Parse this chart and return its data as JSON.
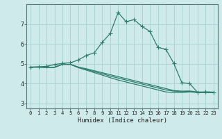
{
  "xlabel": "Humidex (Indice chaleur)",
  "background_color": "#ceeaea",
  "grid_color": "#aad4d4",
  "line_color": "#2e7d6e",
  "xlim": [
    -0.5,
    23.5
  ],
  "ylim": [
    2.75,
    8.0
  ],
  "xticks": [
    0,
    1,
    2,
    3,
    4,
    5,
    6,
    7,
    8,
    9,
    10,
    11,
    12,
    13,
    14,
    15,
    16,
    17,
    18,
    19,
    20,
    21,
    22,
    23
  ],
  "yticks": [
    3,
    4,
    5,
    6,
    7
  ],
  "curve1_x": [
    0,
    1,
    2,
    3,
    4,
    5,
    6,
    7,
    8,
    9,
    10,
    11,
    12,
    13,
    14,
    15,
    16,
    17,
    18,
    19,
    20,
    21,
    22,
    23
  ],
  "curve1_y": [
    4.83,
    4.85,
    4.87,
    4.96,
    5.02,
    5.05,
    5.19,
    5.42,
    5.55,
    6.08,
    6.52,
    7.58,
    7.12,
    7.22,
    6.88,
    6.63,
    5.82,
    5.73,
    5.02,
    4.05,
    4.0,
    3.55,
    3.58,
    3.57
  ],
  "curve2_x": [
    0,
    1,
    2,
    3,
    4,
    5,
    6,
    7,
    8,
    9,
    10,
    11,
    12,
    13,
    14,
    15,
    16,
    17,
    18,
    19,
    20,
    21,
    22,
    23
  ],
  "curve2_y": [
    4.83,
    4.83,
    4.82,
    4.82,
    4.97,
    4.97,
    4.83,
    4.75,
    4.65,
    4.55,
    4.45,
    4.35,
    4.25,
    4.15,
    4.05,
    3.95,
    3.85,
    3.75,
    3.65,
    3.62,
    3.63,
    3.58,
    3.58,
    3.57
  ],
  "curve3_x": [
    0,
    1,
    2,
    3,
    4,
    5,
    6,
    7,
    8,
    9,
    10,
    11,
    12,
    13,
    14,
    15,
    16,
    17,
    18,
    19,
    20,
    21,
    22,
    23
  ],
  "curve3_y": [
    4.83,
    4.83,
    4.82,
    4.82,
    4.97,
    4.97,
    4.83,
    4.71,
    4.6,
    4.5,
    4.38,
    4.28,
    4.18,
    4.08,
    3.98,
    3.88,
    3.78,
    3.68,
    3.62,
    3.6,
    3.6,
    3.56,
    3.56,
    3.55
  ],
  "curve4_x": [
    0,
    1,
    2,
    3,
    4,
    5,
    6,
    7,
    8,
    9,
    10,
    11,
    12,
    13,
    14,
    15,
    16,
    17,
    18,
    19,
    20,
    21,
    22,
    23
  ],
  "curve4_y": [
    4.83,
    4.83,
    4.82,
    4.82,
    4.97,
    4.97,
    4.8,
    4.68,
    4.55,
    4.43,
    4.3,
    4.18,
    4.08,
    3.98,
    3.88,
    3.78,
    3.68,
    3.58,
    3.55,
    3.55,
    3.58,
    3.55,
    3.55,
    3.54
  ]
}
